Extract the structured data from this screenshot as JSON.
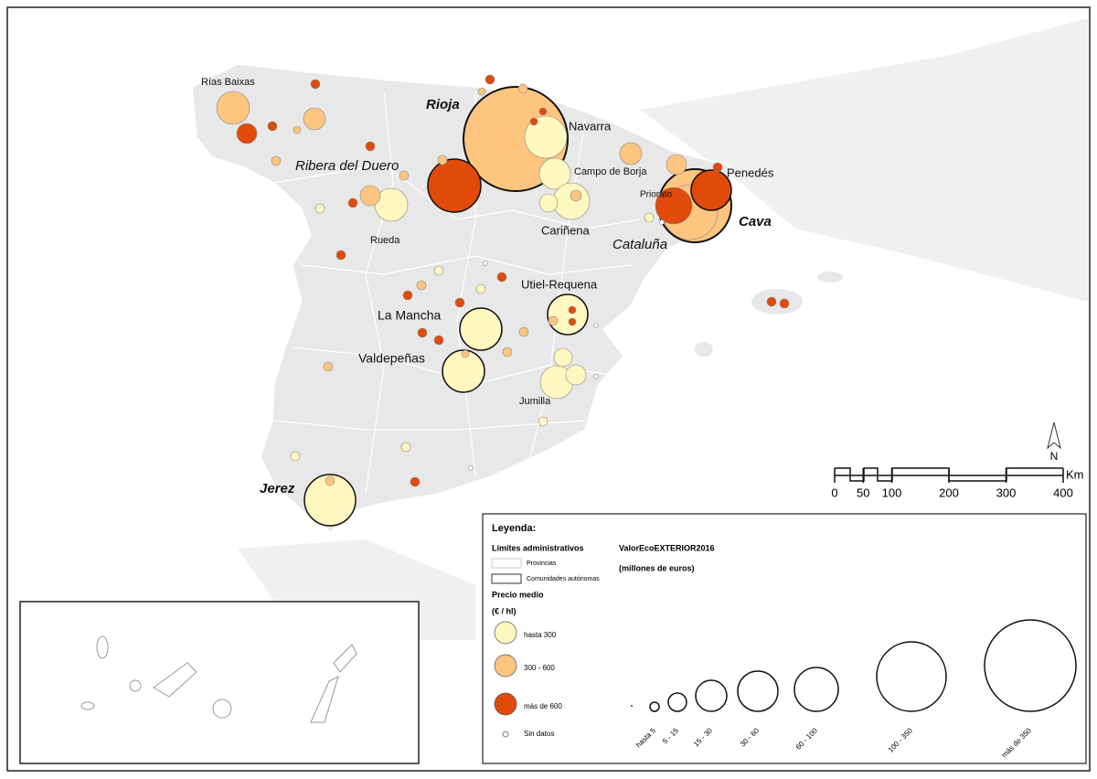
{
  "map": {
    "labels": [
      "Rías Baixas",
      "Rioja",
      "Navarra",
      "Ribera del Duero",
      "Campo de Borja",
      "Penedés",
      "Priorato",
      "Cava",
      "Cataluña",
      "Rueda",
      "Cariñena",
      "Utiel-Requena",
      "La Mancha",
      "Valdepeñas",
      "Jumilla",
      "Jerez"
    ],
    "scale_bar": {
      "ticks": [
        0,
        50,
        100,
        200,
        300,
        400
      ],
      "unit": "Km",
      "north": "N"
    }
  },
  "legend": {
    "title": "Leyenda:",
    "boundaries_title": "Límites administrativos",
    "boundaries": [
      "Provincias",
      "Comunidades autónomas"
    ],
    "size_title": "ValorEcoEXTERIOR2016",
    "size_unit": "(millones de euros)",
    "color_title": "Precio medio",
    "color_unit": "(€ / hl)",
    "color_classes": [
      "hasta 300",
      "300 - 600",
      "más de 600",
      "Sin datos"
    ],
    "size_classes": [
      "hasta 5",
      "5 - 15",
      "15 - 30",
      "30 - 60",
      "60 - 100",
      "100 - 350",
      "más de 350"
    ]
  }
}
